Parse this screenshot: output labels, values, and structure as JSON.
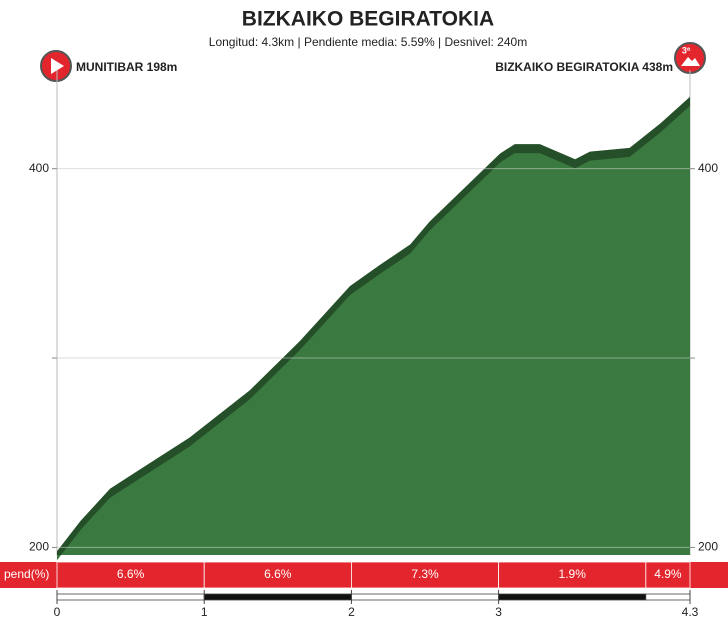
{
  "chart_data": {
    "type": "area",
    "title": "BIZKAIKO BEGIRATOKIA",
    "subtitle": "Longitud: 4.3km | Pendiente media: 5.59% | Desnivel: 240m",
    "start_label": "MUNITIBAR 198m",
    "end_label": "BIZKAIKO BEGIRATOKIA 438m",
    "category_badge": "3ª",
    "color": "#3a7a40",
    "edge_color": "#244f28",
    "x": [
      0,
      0.16,
      0.36,
      0.7,
      0.9,
      1.31,
      1.65,
      1.99,
      2.19,
      2.4,
      2.53,
      3.01,
      3.11,
      3.28,
      3.52,
      3.62,
      3.89,
      4.1,
      4.3
    ],
    "values": [
      198,
      214,
      231,
      248,
      258,
      283,
      309,
      338,
      349,
      360,
      372,
      408,
      413,
      413,
      405,
      409,
      411,
      424,
      438
    ],
    "xlim": [
      0,
      4.3
    ],
    "xticks": [
      0,
      1,
      2,
      3,
      4.3
    ],
    "ylim": [
      196,
      450
    ],
    "yticks": [
      200,
      400
    ],
    "ygrid": [
      300
    ],
    "gradient": {
      "label": "pend(%)",
      "color": "#e3262d",
      "edges": [
        0,
        1,
        2,
        3,
        4,
        4.3
      ],
      "values": [
        6.6,
        6.6,
        7.3,
        1.9,
        4.9
      ],
      "value_labels": [
        "6.6%",
        "6.6%",
        "7.3%",
        "1.9%",
        "4.9%"
      ]
    }
  }
}
